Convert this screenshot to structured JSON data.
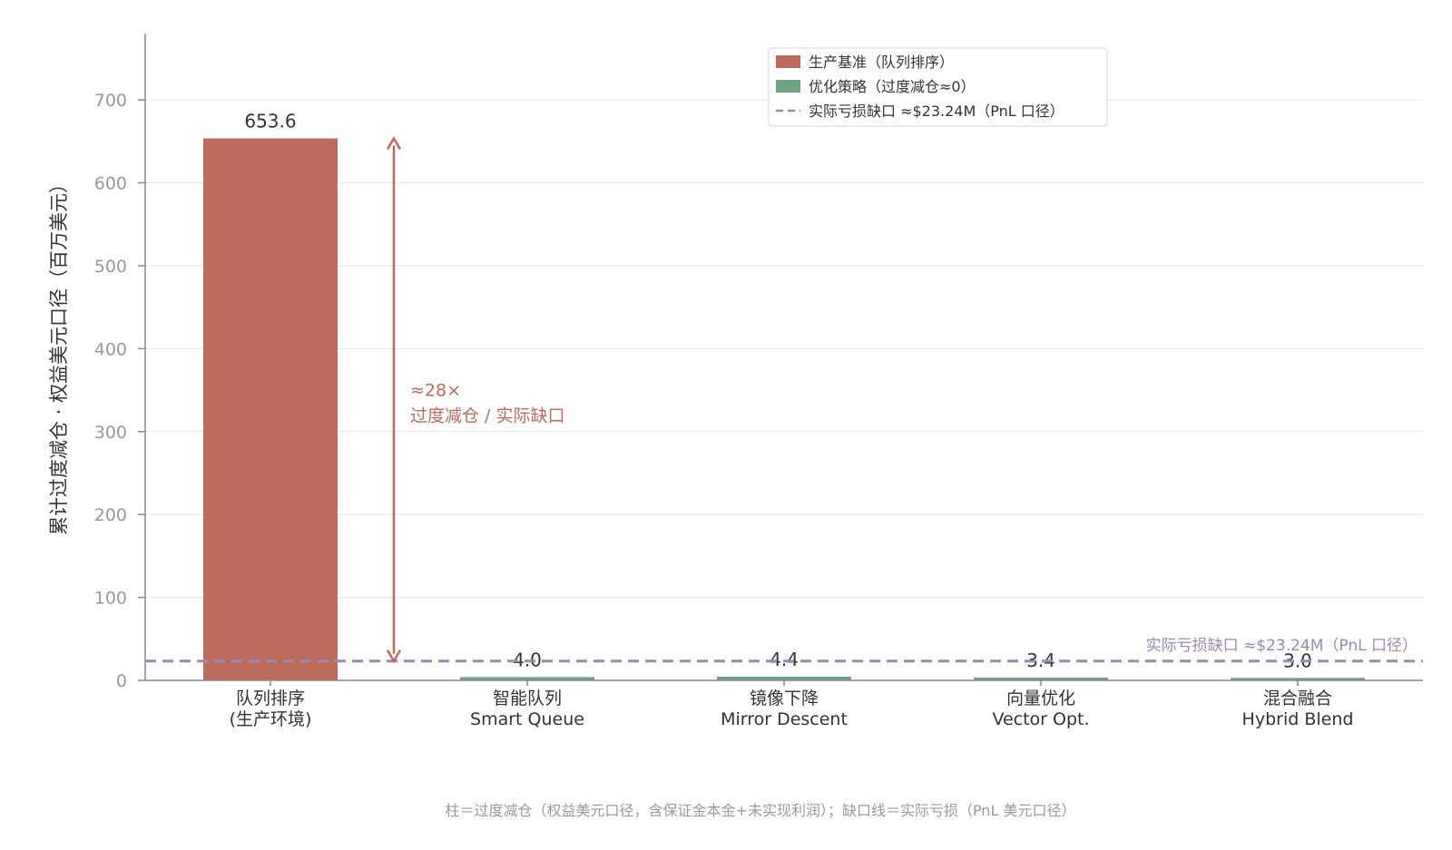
{
  "chart_data": {
    "type": "bar",
    "categories": [
      [
        "队列排序",
        "(生产环境)"
      ],
      [
        "智能队列",
        "Smart Queue"
      ],
      [
        "镜像下降",
        "Mirror Descent"
      ],
      [
        "向量优化",
        "Vector Opt."
      ],
      [
        "混合融合",
        "Hybrid Blend"
      ]
    ],
    "values": [
      653.6,
      4.0,
      4.4,
      3.4,
      3.0
    ],
    "value_labels": [
      "653.6",
      "4.0",
      "4.4",
      "3.4",
      "3.0"
    ],
    "bar_colors": [
      "#bd6b5a",
      "#6fa385",
      "#6fa385",
      "#6fa385",
      "#6fa385"
    ],
    "ylabel": "累计过度减仓 · 权益美元口径（百万美元）",
    "ylim": [
      0,
      780
    ],
    "yticks": [
      0,
      100,
      200,
      300,
      400,
      500,
      600,
      700
    ],
    "ytick_labels": [
      "0",
      "100",
      "200",
      "300",
      "400",
      "500",
      "600",
      "700"
    ],
    "grid": true,
    "reference_line": {
      "value": 23.24,
      "color": "#9b87b8",
      "label": "实际亏损缺口 ≈$23.24M（PnL 口径）"
    },
    "annotation": {
      "color": "#c0695a",
      "from": 23.24,
      "to": 653.6,
      "lines": [
        "≈28×",
        "过度减仓 / 实际缺口"
      ]
    },
    "legend": {
      "position": "top-right",
      "entries": [
        {
          "label": "生产基准（队列排序）",
          "color": "#bd6b5a",
          "kind": "bar"
        },
        {
          "label": "优化策略（过度减仓≈0）",
          "color": "#6fa385",
          "kind": "bar"
        },
        {
          "label": "实际亏损缺口 ≈$23.24M（PnL 口径）",
          "color": "#9b87b8",
          "kind": "dashed-line"
        }
      ]
    },
    "footnote": "柱＝过度减仓（权益美元口径，含保证金本金+未实现利润）；缺口线＝实际亏损（PnL 美元口径）"
  }
}
